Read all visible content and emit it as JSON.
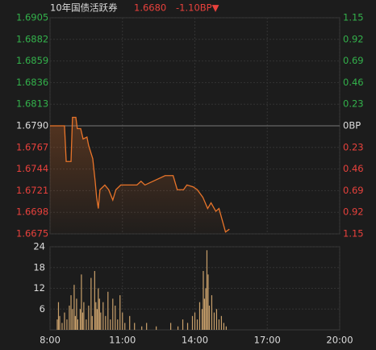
{
  "header": {
    "name": "10年国债活跃券",
    "price": "1.6680",
    "change": "-1.10BP▼",
    "name_color": "#dddddd",
    "price_color": "#e8413c"
  },
  "chart_data": [
    {
      "type": "line",
      "xlim": [
        8,
        20
      ],
      "xticks": [
        8,
        11,
        14,
        17,
        20
      ],
      "ylim": [
        1.6675,
        1.6905
      ],
      "yticks": [
        1.6675,
        1.6698,
        1.6721,
        1.6744,
        1.6767,
        {
          "value": 1.679,
          "label": "1.6790"
        },
        1.6813,
        1.6836,
        1.6859,
        1.6882,
        1.6905
      ],
      "y2lim": [
        1.15,
        -1.15
      ],
      "y2ticks": [
        1.15,
        0.92,
        0.69,
        0.46,
        0.23,
        {
          "value": 0,
          "label": "0BP"
        },
        {
          "value": -0.23,
          "label": "0.23"
        },
        {
          "value": -0.46,
          "label": "0.46"
        },
        {
          "value": -0.69,
          "label": "0.69"
        },
        {
          "value": -0.92,
          "label": "0.92"
        },
        {
          "value": -1.15,
          "label": "1.15"
        }
      ],
      "tick_colors": {
        "above": "#33b14b",
        "below": "#e8413c",
        "level": "#dddddd"
      },
      "grid": true,
      "series": [
        {
          "color": "#e8742a",
          "x": [
            8.0,
            8.6,
            8.67,
            8.87,
            8.93,
            9.07,
            9.13,
            9.27,
            9.37,
            9.53,
            9.6,
            9.77,
            9.87,
            9.93,
            10.0,
            10.07,
            10.27,
            10.43,
            10.6,
            10.73,
            10.93,
            11.6,
            11.77,
            11.93,
            12.77,
            13.1,
            13.27,
            13.53,
            13.67,
            13.93,
            14.1,
            14.33,
            14.53,
            14.67,
            14.87,
            15.0,
            15.13,
            15.27,
            15.43
          ],
          "values": [
            1.679,
            1.679,
            1.6752,
            1.6752,
            1.6799,
            1.6799,
            1.6787,
            1.6787,
            1.6776,
            1.6778,
            1.6769,
            1.6755,
            1.6731,
            1.6714,
            1.6702,
            1.6722,
            1.6727,
            1.6722,
            1.6711,
            1.6722,
            1.6727,
            1.6727,
            1.6731,
            1.6727,
            1.6737,
            1.6737,
            1.6722,
            1.6722,
            1.6727,
            1.6725,
            1.6722,
            1.6714,
            1.6702,
            1.6708,
            1.6699,
            1.6702,
            1.669,
            1.6677,
            1.668
          ]
        }
      ]
    },
    {
      "type": "bar",
      "xlim": [
        8,
        20
      ],
      "xticks": [
        {
          "value": 8,
          "label": "8:00"
        },
        {
          "value": 11,
          "label": "11:00"
        },
        {
          "value": 14,
          "label": "14:00"
        },
        {
          "value": 17,
          "label": "17:00"
        },
        {
          "value": 20,
          "label": "20:00"
        }
      ],
      "ylim": [
        0,
        24
      ],
      "yticks": [
        6,
        12,
        18,
        24
      ],
      "grid": true,
      "color": "#c9a06b",
      "x": [
        8.3,
        8.35,
        8.4,
        8.5,
        8.6,
        8.7,
        8.8,
        8.87,
        8.93,
        9.0,
        9.05,
        9.1,
        9.15,
        9.25,
        9.3,
        9.35,
        9.4,
        9.5,
        9.6,
        9.7,
        9.75,
        9.85,
        9.9,
        9.95,
        10.0,
        10.05,
        10.1,
        10.2,
        10.3,
        10.4,
        10.5,
        10.6,
        10.7,
        10.8,
        10.9,
        11.0,
        11.1,
        11.3,
        11.5,
        11.8,
        12.0,
        12.4,
        13.0,
        13.3,
        13.5,
        13.7,
        13.9,
        14.0,
        14.1,
        14.2,
        14.3,
        14.35,
        14.4,
        14.45,
        14.5,
        14.55,
        14.6,
        14.7,
        14.8,
        14.9,
        15.0,
        15.1,
        15.2,
        15.3
      ],
      "values": [
        3,
        8,
        4,
        2,
        5,
        3,
        7,
        10,
        6,
        13,
        4,
        9,
        3,
        6,
        16,
        5,
        8,
        3,
        7,
        15,
        4,
        17,
        8,
        6,
        12,
        9,
        5,
        8,
        4,
        11,
        3,
        9,
        7,
        3,
        10,
        5,
        2,
        4,
        2,
        1,
        2,
        1,
        2,
        1,
        3,
        2,
        4,
        5,
        3,
        8,
        6,
        17,
        9,
        12,
        23,
        16,
        7,
        10,
        5,
        6,
        3,
        4,
        2,
        1
      ]
    }
  ]
}
